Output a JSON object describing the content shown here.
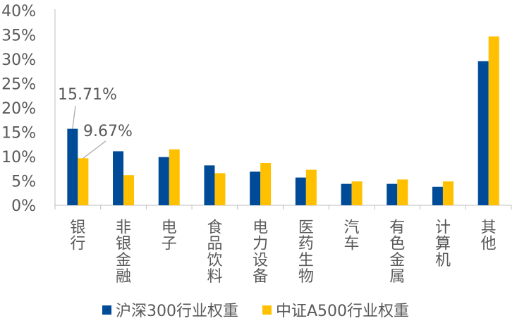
{
  "chart_data": {
    "type": "bar",
    "categories": [
      "银行",
      "非银金融",
      "电子",
      "食品饮料",
      "电力设备",
      "医药生物",
      "汽车",
      "有色金属",
      "计算机",
      "其他"
    ],
    "series": [
      {
        "name": "沪深300行业权重",
        "color": "#004B97",
        "values": [
          15.71,
          11.1,
          9.9,
          8.2,
          6.9,
          5.7,
          4.4,
          4.4,
          3.8,
          29.6
        ]
      },
      {
        "name": "中证A500行业权重",
        "color": "#FFC000",
        "values": [
          9.67,
          6.2,
          11.5,
          6.6,
          8.7,
          7.3,
          4.9,
          5.3,
          4.9,
          34.7
        ]
      }
    ],
    "y_ticks": [
      "0%",
      "5%",
      "10%",
      "15%",
      "20%",
      "25%",
      "30%",
      "35%",
      "40%"
    ],
    "ylim": [
      0,
      40
    ],
    "annotations": [
      {
        "text": "15.71%",
        "series": 0,
        "category": 0
      },
      {
        "text": "9.67%",
        "series": 1,
        "category": 0
      }
    ],
    "legend_position": "bottom"
  }
}
